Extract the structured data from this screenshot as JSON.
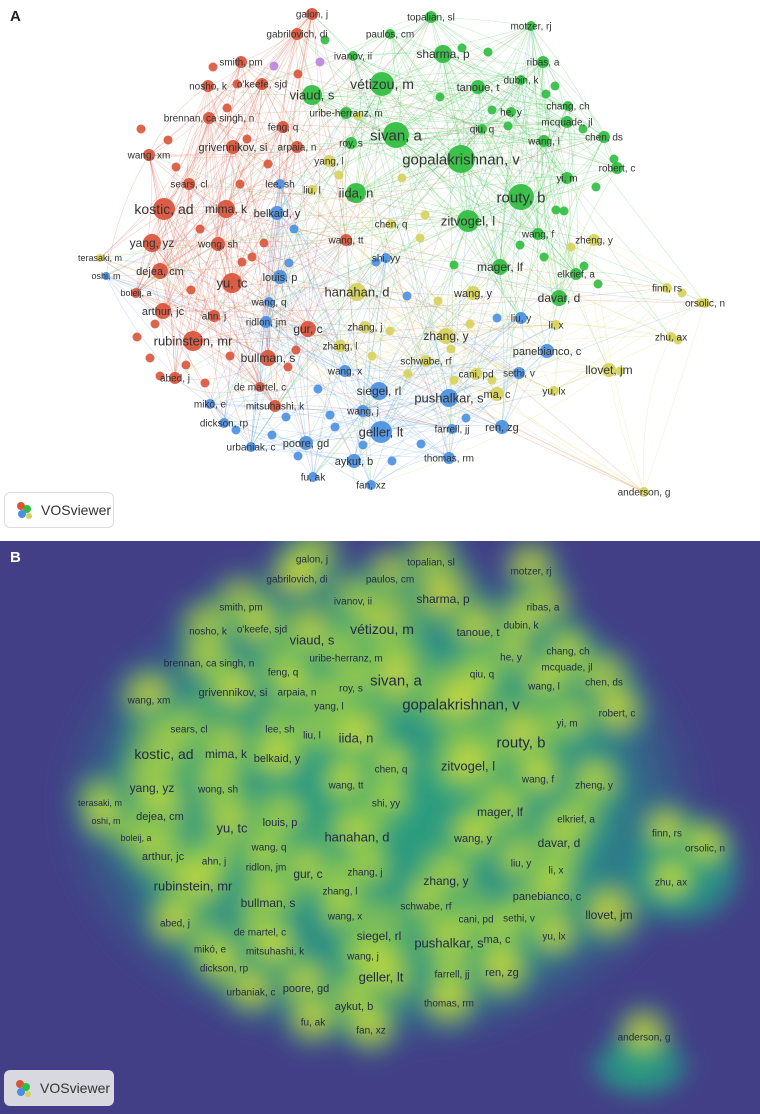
{
  "panels": {
    "a": {
      "letter": "A"
    },
    "b": {
      "letter": "B"
    }
  },
  "brand": {
    "name": "VOSviewer"
  },
  "colors": {
    "cluster_red": "#d9533a",
    "cluster_green": "#2ebd3f",
    "cluster_blue": "#4b8fe0",
    "cluster_yellow": "#d6d15a",
    "cluster_purple": "#b983e0",
    "density_background": "#433f86",
    "density_high": "#f3ea35"
  },
  "nodes": [
    {
      "label": "galon, j",
      "c": "red"
    },
    {
      "label": "topalian, sl",
      "c": "green"
    },
    {
      "label": "motzer, rj",
      "c": "green"
    },
    {
      "label": "gabrilovich, di",
      "c": "red"
    },
    {
      "label": "paulos, cm",
      "c": "green"
    },
    {
      "label": "smith, pm",
      "c": "red"
    },
    {
      "label": "ivanov, ii",
      "c": "green"
    },
    {
      "label": "sharma, p",
      "c": "green"
    },
    {
      "label": "ribas, a",
      "c": "green"
    },
    {
      "label": "nosho, k",
      "c": "red"
    },
    {
      "label": "o'keefe, sjd",
      "c": "red"
    },
    {
      "label": "viaud, s",
      "c": "green"
    },
    {
      "label": "vétizou, m",
      "c": "green"
    },
    {
      "label": "tanoue, t",
      "c": "green"
    },
    {
      "label": "dubin, k",
      "c": "green"
    },
    {
      "label": "brennan, ca singh, n",
      "c": "red"
    },
    {
      "label": "uribe-herranz, m",
      "c": "green"
    },
    {
      "label": "he, y",
      "c": "green"
    },
    {
      "label": "chang, ch",
      "c": "green"
    },
    {
      "label": "mcquade, jl",
      "c": "green"
    },
    {
      "label": "feng, q",
      "c": "red"
    },
    {
      "label": "qiu, q",
      "c": "green"
    },
    {
      "label": "chen, ds",
      "c": "green"
    },
    {
      "label": "sivan, a",
      "c": "green"
    },
    {
      "label": "roy, s",
      "c": "green"
    },
    {
      "label": "grivennikov, si",
      "c": "red"
    },
    {
      "label": "arpaia, n",
      "c": "red"
    },
    {
      "label": "wang, l",
      "c": "green"
    },
    {
      "label": "wang, xm",
      "c": "red"
    },
    {
      "label": "yang, l",
      "c": "yellow"
    },
    {
      "label": "gopalakrishnan, v",
      "c": "green"
    },
    {
      "label": "robert, c",
      "c": "green"
    },
    {
      "label": "yi, m",
      "c": "green"
    },
    {
      "label": "sears, cl",
      "c": "red"
    },
    {
      "label": "lee, sh",
      "c": "blue"
    },
    {
      "label": "liu, l",
      "c": "yellow"
    },
    {
      "label": "iida, n",
      "c": "green"
    },
    {
      "label": "routy, b",
      "c": "green"
    },
    {
      "label": "kostic, ad",
      "c": "red"
    },
    {
      "label": "mima, k",
      "c": "red"
    },
    {
      "label": "belkaid, y",
      "c": "blue"
    },
    {
      "label": "chen, q",
      "c": "yellow"
    },
    {
      "label": "zitvogel, l",
      "c": "green"
    },
    {
      "label": "wang, f",
      "c": "green"
    },
    {
      "label": "zheng, y",
      "c": "yellow"
    },
    {
      "label": "yang, yz",
      "c": "red"
    },
    {
      "label": "wong, sh",
      "c": "red"
    },
    {
      "label": "wang, tt",
      "c": "red"
    },
    {
      "label": "terasaki, m",
      "c": "yellow"
    },
    {
      "label": "oshi, m",
      "c": "blue"
    },
    {
      "label": "dejea, cm",
      "c": "red"
    },
    {
      "label": "shi, yy",
      "c": "blue"
    },
    {
      "label": "mager, lf",
      "c": "green"
    },
    {
      "label": "elkrief, a",
      "c": "green"
    },
    {
      "label": "yu, tc",
      "c": "red"
    },
    {
      "label": "louis, p",
      "c": "blue"
    },
    {
      "label": "boleij, a",
      "c": "red"
    },
    {
      "label": "hanahan, d",
      "c": "yellow"
    },
    {
      "label": "wang, q",
      "c": "blue"
    },
    {
      "label": "wang, y",
      "c": "yellow"
    },
    {
      "label": "davar, d",
      "c": "green"
    },
    {
      "label": "finn, rs",
      "c": "yellow"
    },
    {
      "label": "orsolic, n",
      "c": "yellow"
    },
    {
      "label": "arthur, jc",
      "c": "red"
    },
    {
      "label": "ahn, j",
      "c": "red"
    },
    {
      "label": "ridlon, jm",
      "c": "blue"
    },
    {
      "label": "liu, y",
      "c": "blue"
    },
    {
      "label": "gur, c",
      "c": "red"
    },
    {
      "label": "zhang, j",
      "c": "yellow"
    },
    {
      "label": "li, x",
      "c": "yellow"
    },
    {
      "label": "rubinstein, mr",
      "c": "red"
    },
    {
      "label": "zhang, y",
      "c": "yellow"
    },
    {
      "label": "zhu, ax",
      "c": "yellow"
    },
    {
      "label": "zhang, l",
      "c": "yellow"
    },
    {
      "label": "panebianco, c",
      "c": "blue"
    },
    {
      "label": "bullman, s",
      "c": "red"
    },
    {
      "label": "schwabe, rf",
      "c": "yellow"
    },
    {
      "label": "cani, pd",
      "c": "yellow"
    },
    {
      "label": "wang, x",
      "c": "blue"
    },
    {
      "label": "sethi, v",
      "c": "blue"
    },
    {
      "label": "llovet, jm",
      "c": "yellow"
    },
    {
      "label": "abed, j",
      "c": "red"
    },
    {
      "label": "de martel, c",
      "c": "red"
    },
    {
      "label": "siegel, rl",
      "c": "blue"
    },
    {
      "label": "ma, c",
      "c": "yellow"
    },
    {
      "label": "yu, lx",
      "c": "yellow"
    },
    {
      "label": "pushalkar, s",
      "c": "blue"
    },
    {
      "label": "mikó, e",
      "c": "blue"
    },
    {
      "label": "mitsuhashi, k",
      "c": "red"
    },
    {
      "label": "wang, j",
      "c": "blue"
    },
    {
      "label": "dickson, rp",
      "c": "blue"
    },
    {
      "label": "farrell, jj",
      "c": "blue"
    },
    {
      "label": "ren, zg",
      "c": "blue"
    },
    {
      "label": "geller, lt",
      "c": "blue"
    },
    {
      "label": "urbaniak, c",
      "c": "blue"
    },
    {
      "label": "poore, gd",
      "c": "blue"
    },
    {
      "label": "thomas, rm",
      "c": "blue"
    },
    {
      "label": "aykut, b",
      "c": "blue"
    },
    {
      "label": "fu, ak",
      "c": "blue"
    },
    {
      "label": "fan, xz",
      "c": "blue"
    },
    {
      "label": "anderson, g",
      "c": "yellow"
    }
  ]
}
